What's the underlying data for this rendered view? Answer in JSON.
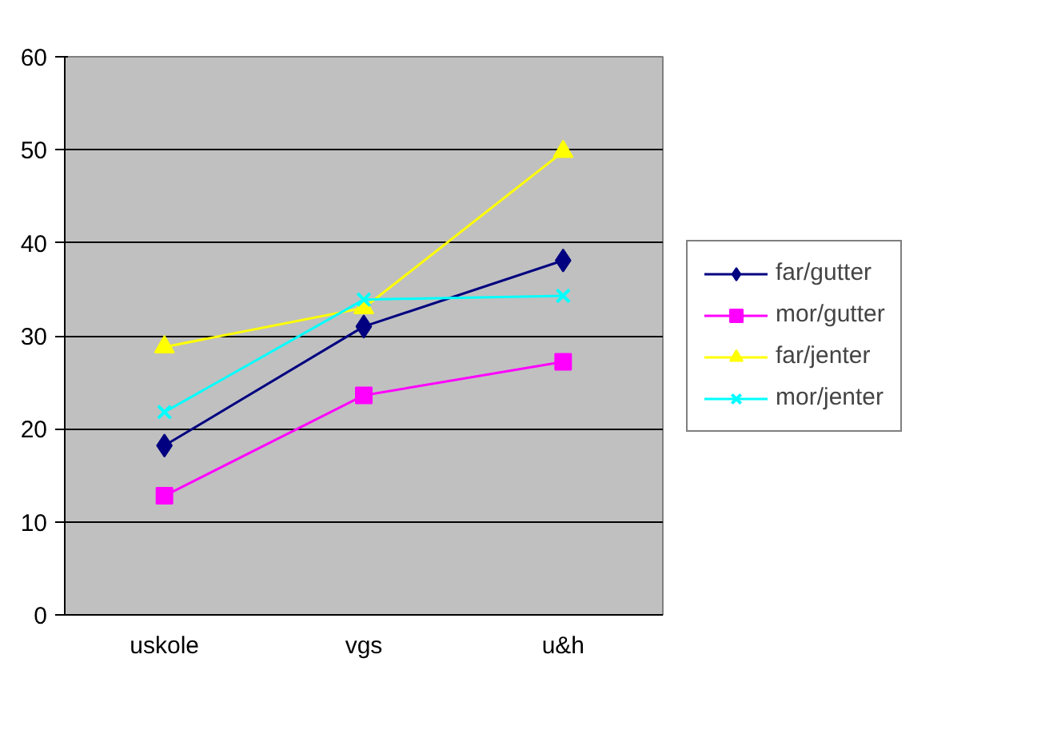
{
  "chart_data": {
    "type": "line",
    "categories": [
      "uskole",
      "vgs",
      "u&h"
    ],
    "series": [
      {
        "name": "far/gutter",
        "color": "#000080",
        "marker": "diamond",
        "values": [
          18.2,
          31.0,
          38.1
        ]
      },
      {
        "name": "mor/gutter",
        "color": "#ff00ff",
        "marker": "square",
        "values": [
          12.8,
          23.6,
          27.2
        ]
      },
      {
        "name": "far/jenter",
        "color": "#ffff00",
        "marker": "triangle",
        "values": [
          28.8,
          33.0,
          49.8
        ]
      },
      {
        "name": "mor/jenter",
        "color": "#00ffff",
        "marker": "cross",
        "values": [
          21.8,
          33.9,
          34.3
        ]
      }
    ],
    "ylim": [
      0,
      60
    ],
    "yticks": [
      0,
      10,
      20,
      30,
      40,
      50,
      60
    ],
    "grid": "y",
    "legend": "right"
  }
}
